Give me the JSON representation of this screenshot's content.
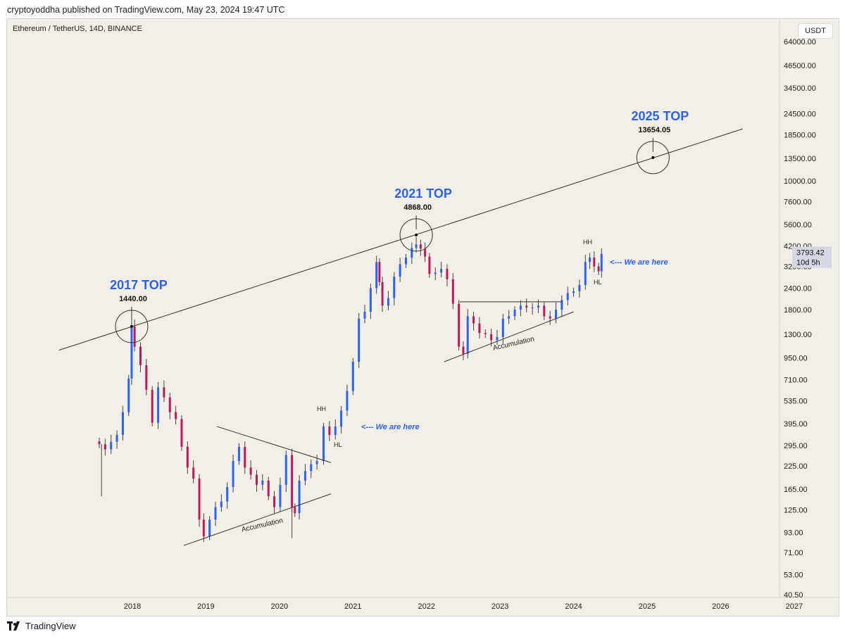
{
  "publisher_line": "cryptoyoddha published on TradingView.com, May 23, 2024 19:47 UTC",
  "symbol_line": "Ethereum / TetherUS, 14D, BINANCE",
  "currency_button": "USDT",
  "footer_brand": "TradingView",
  "colors": {
    "background": "#f2efe7",
    "up": "#2962ff",
    "down": "#c2185b",
    "annotation_blue": "#2962ff",
    "line": "#333333"
  },
  "chart_data": {
    "type": "candlestick",
    "scale": "log",
    "ylim": [
      38,
      75000
    ],
    "xlim": [
      2016.9,
      2027.1
    ],
    "y_ticks": [
      40.5,
      53,
      71,
      93,
      125,
      165,
      225,
      295,
      395,
      535,
      710,
      950,
      1300,
      1800,
      2400,
      3200,
      4200,
      5600,
      7600,
      10000,
      13500,
      18500,
      24500,
      34500,
      46500,
      64000
    ],
    "y_tick_labels": [
      "40.50",
      "53.00",
      "71.00",
      "93.00",
      "125.00",
      "165.00",
      "225.00",
      "295.00",
      "395.00",
      "535.00",
      "710.00",
      "950.00",
      "1300.00",
      "1800.00",
      "2400.00",
      "3200.00",
      "4200.00",
      "5600.00",
      "7600.00",
      "10000.00",
      "13500.00",
      "18500.00",
      "24500.00",
      "34500.00",
      "46500.00",
      "64000.00"
    ],
    "x_ticks": [
      2018,
      2019,
      2020,
      2021,
      2022,
      2023,
      2024,
      2025,
      2026,
      2027
    ],
    "x_tick_labels": [
      "2018",
      "2019",
      "2020",
      "2021",
      "2022",
      "2023",
      "2024",
      "2025",
      "2026",
      "2027"
    ],
    "closes": [
      [
        2017.55,
        300
      ],
      [
        2017.63,
        280
      ],
      [
        2017.71,
        310
      ],
      [
        2017.79,
        340
      ],
      [
        2017.87,
        460
      ],
      [
        2017.95,
        720
      ],
      [
        2017.99,
        1440
      ],
      [
        2018.03,
        1100
      ],
      [
        2018.11,
        860
      ],
      [
        2018.19,
        620
      ],
      [
        2018.27,
        400
      ],
      [
        2018.35,
        640
      ],
      [
        2018.43,
        560
      ],
      [
        2018.51,
        460
      ],
      [
        2018.59,
        420
      ],
      [
        2018.67,
        290
      ],
      [
        2018.75,
        220
      ],
      [
        2018.83,
        190
      ],
      [
        2018.91,
        110
      ],
      [
        2018.97,
        88
      ],
      [
        2019.05,
        110
      ],
      [
        2019.13,
        130
      ],
      [
        2019.21,
        140
      ],
      [
        2019.29,
        170
      ],
      [
        2019.37,
        240
      ],
      [
        2019.45,
        290
      ],
      [
        2019.53,
        220
      ],
      [
        2019.61,
        200
      ],
      [
        2019.69,
        175
      ],
      [
        2019.77,
        185
      ],
      [
        2019.85,
        150
      ],
      [
        2019.93,
        130
      ],
      [
        2020.01,
        175
      ],
      [
        2020.09,
        260
      ],
      [
        2020.17,
        130
      ],
      [
        2020.21,
        120
      ],
      [
        2020.27,
        185
      ],
      [
        2020.35,
        210
      ],
      [
        2020.43,
        230
      ],
      [
        2020.51,
        240
      ],
      [
        2020.6,
        380
      ],
      [
        2020.68,
        340
      ],
      [
        2020.76,
        380
      ],
      [
        2020.84,
        470
      ],
      [
        2020.92,
        610
      ],
      [
        2021.0,
        900
      ],
      [
        2021.08,
        1600
      ],
      [
        2021.16,
        1750
      ],
      [
        2021.24,
        2400
      ],
      [
        2021.32,
        3400
      ],
      [
        2021.36,
        2600
      ],
      [
        2021.4,
        1900
      ],
      [
        2021.48,
        2100
      ],
      [
        2021.56,
        2800
      ],
      [
        2021.64,
        3300
      ],
      [
        2021.72,
        3600
      ],
      [
        2021.8,
        4100
      ],
      [
        2021.86,
        4300
      ],
      [
        2021.92,
        4050
      ],
      [
        2021.98,
        3650
      ],
      [
        2022.04,
        2900
      ],
      [
        2022.12,
        2950
      ],
      [
        2022.2,
        3100
      ],
      [
        2022.28,
        2700
      ],
      [
        2022.36,
        1950
      ],
      [
        2022.44,
        1100
      ],
      [
        2022.5,
        1000
      ],
      [
        2022.56,
        1650
      ],
      [
        2022.64,
        1500
      ],
      [
        2022.72,
        1320
      ],
      [
        2022.8,
        1300
      ],
      [
        2022.88,
        1200
      ],
      [
        2022.96,
        1250
      ],
      [
        2023.04,
        1600
      ],
      [
        2023.12,
        1650
      ],
      [
        2023.2,
        1800
      ],
      [
        2023.28,
        1900
      ],
      [
        2023.36,
        1850
      ],
      [
        2023.44,
        1850
      ],
      [
        2023.52,
        1900
      ],
      [
        2023.6,
        1650
      ],
      [
        2023.68,
        1600
      ],
      [
        2023.76,
        1800
      ],
      [
        2023.84,
        2050
      ],
      [
        2023.92,
        2250
      ],
      [
        2024.0,
        2300
      ],
      [
        2024.08,
        2500
      ],
      [
        2024.16,
        3400
      ],
      [
        2024.22,
        3600
      ],
      [
        2024.28,
        3200
      ],
      [
        2024.34,
        3000
      ],
      [
        2024.38,
        3793.42
      ]
    ],
    "resistance_line": {
      "start": [
        2017.0,
        1050
      ],
      "end": [
        2026.3,
        20000
      ]
    },
    "annotations": [
      {
        "label": "2017 TOP",
        "price_label": "1440.00",
        "x": 2017.99,
        "y": 1440
      },
      {
        "label": "2021 TOP",
        "price_label": "4868.00",
        "x": 2021.86,
        "y": 4868
      },
      {
        "label": "2025 TOP",
        "price_label": "13654.05",
        "x": 2025.08,
        "y": 13654.05
      }
    ],
    "pattern_labels": {
      "accumulation_1": "Accumulation",
      "accumulation_2": "Accumulation",
      "hh_1": "HH",
      "hl_1": "HL",
      "we_are_here_1": "<--- We are here",
      "hh_2": "HH",
      "hl_2": "HL",
      "we_are_here_2": "<--- We are here"
    },
    "last_price": {
      "value": 3793.42,
      "label": "3793.42",
      "countdown": "10d 5h"
    }
  }
}
